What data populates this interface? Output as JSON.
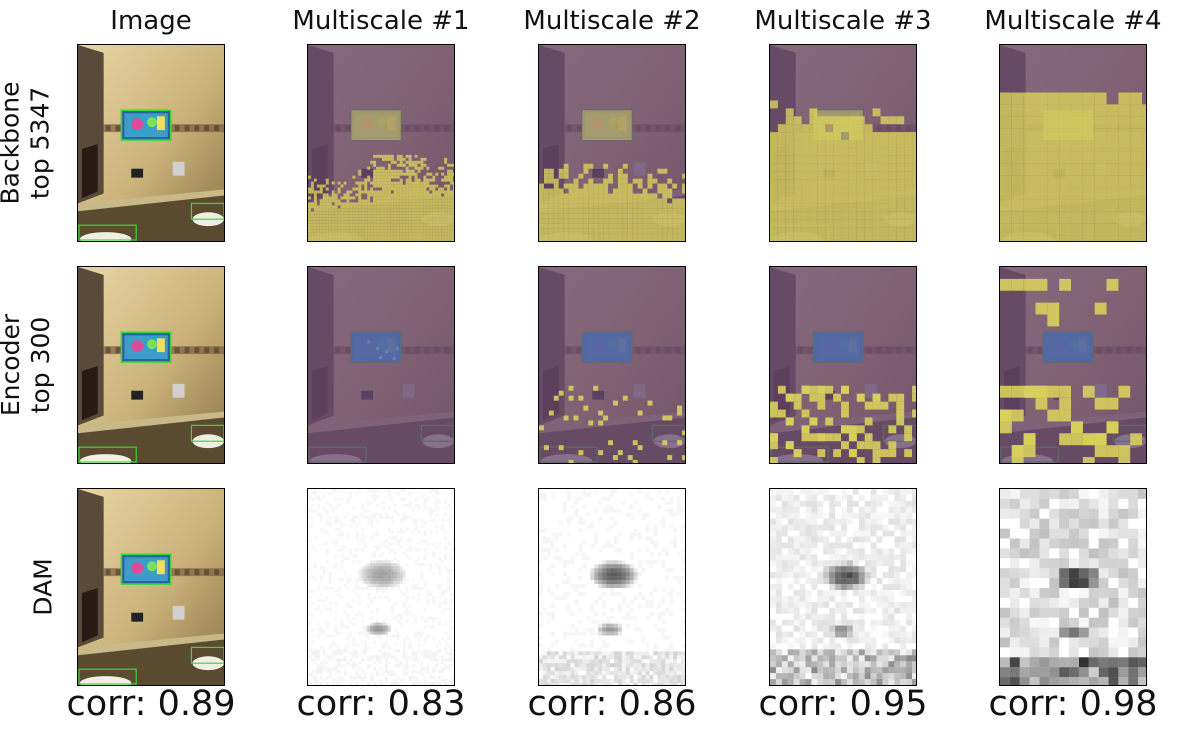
{
  "column_titles": [
    "Image",
    "Multiscale #1",
    "Multiscale #2",
    "Multiscale #3",
    "Multiscale #4"
  ],
  "row_labels": [
    {
      "line1": "Backbone",
      "line2": "top 5347"
    },
    {
      "line1": "Encoder",
      "line2": "top 300"
    },
    {
      "line1": "DAM",
      "line2": ""
    }
  ],
  "correlations": [
    "corr: 0.89",
    "corr: 0.83",
    "corr: 0.86",
    "corr: 0.95",
    "corr: 0.98"
  ],
  "colors": {
    "mask_selected": "#d8cf5c",
    "mask_unselected": "#6a4a72",
    "box_outline": "#2ecc2e",
    "heatmap_ink": "#000000"
  }
}
